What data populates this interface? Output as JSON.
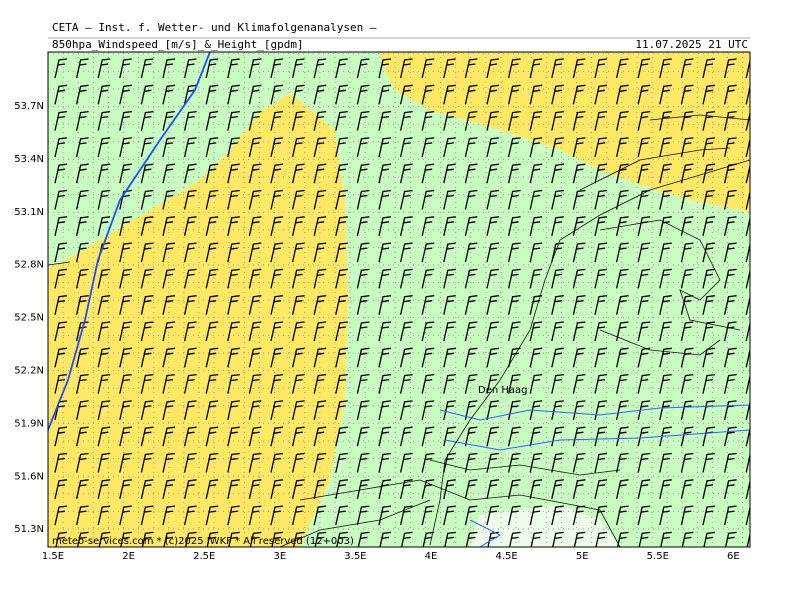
{
  "header": {
    "title": "CETA — Inst. f. Wetter- und Klimafolgenanalysen —",
    "subtitle": "850hpa_Windspeed_[m/s]_&_Height_[gpdm]",
    "timestamp": "11.07.2025 21 UTC"
  },
  "map": {
    "lat_labels": [
      "53.7N",
      "53.4N",
      "53.1N",
      "52.8N",
      "52.5N",
      "52.2N",
      "51.9N",
      "51.6N",
      "51.3N"
    ],
    "lon_labels": [
      "1.5E",
      "2E",
      "2.5E",
      "3E",
      "3.5E",
      "4E",
      "4.5E",
      "5E",
      "5.5E",
      "6E"
    ],
    "place_label": "Den Haag",
    "footer": "meteo-services.com * (c)2025 IWKF * All reserved (12+003)"
  }
}
